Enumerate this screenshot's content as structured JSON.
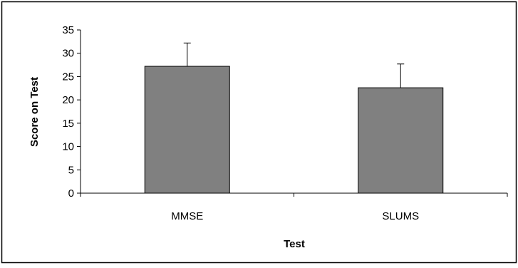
{
  "chart_data": {
    "type": "bar",
    "categories": [
      "MMSE",
      "SLUMS"
    ],
    "series": [
      {
        "values": [
          27.2,
          22.6
        ],
        "error_plus": [
          5.0,
          5.1
        ]
      }
    ],
    "xlabel": "Test",
    "ylabel": "Score on Test",
    "ylim": [
      0,
      35
    ],
    "yticks": [
      0,
      5,
      10,
      15,
      20,
      25,
      30,
      35
    ],
    "grid": false,
    "legend": "none",
    "colors": {
      "bar_fill": "#808080",
      "bar_stroke": "#000000",
      "axis": "#000000",
      "background": "#ffffff",
      "border": "#000000"
    }
  }
}
